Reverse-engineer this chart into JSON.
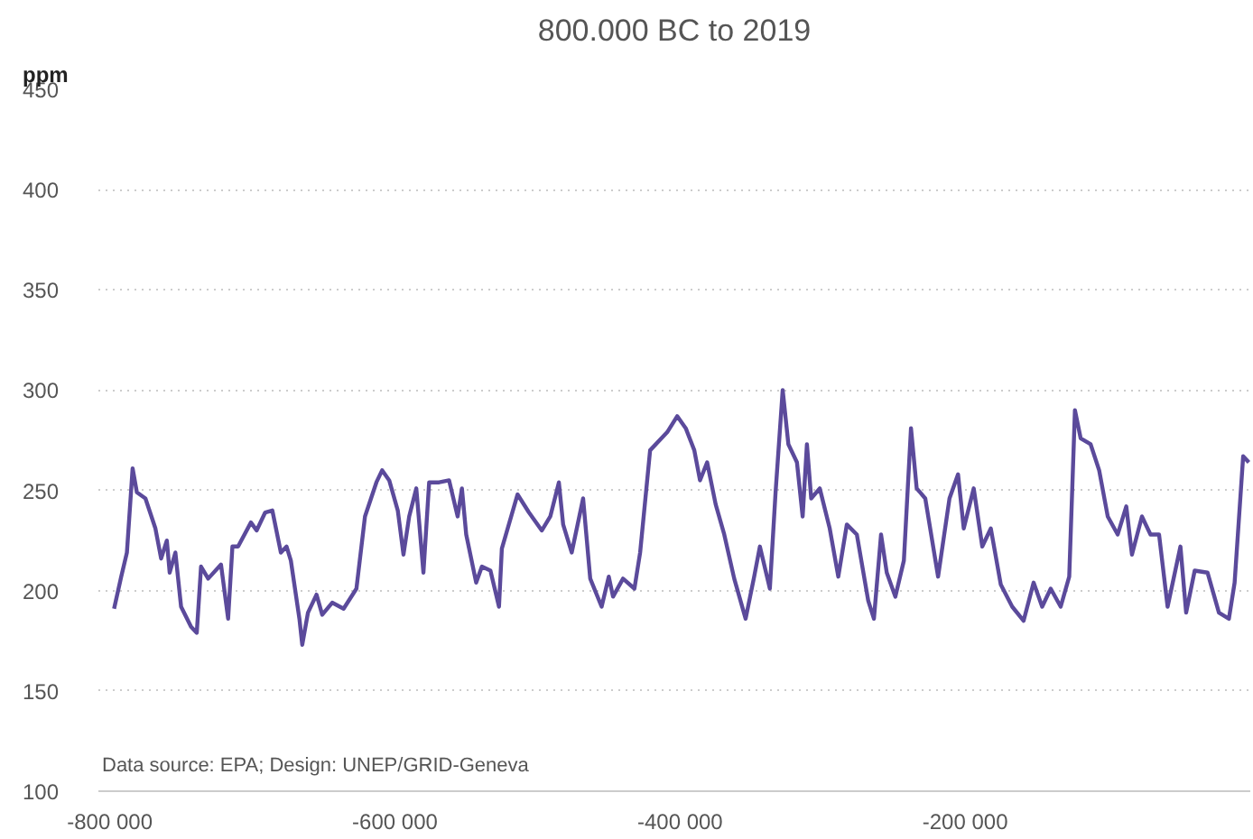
{
  "chart_data": {
    "type": "line",
    "title": "800.000 BC to 2019",
    "ylabel": "ppm",
    "annotations": [
      "Data source: EPA; Design: UNEP/GRID-Geneva"
    ],
    "xlim": [
      -808000,
      0
    ],
    "ylim": [
      100,
      450
    ],
    "xticks": [
      {
        "value": -800000,
        "label": "-800 000"
      },
      {
        "value": -600000,
        "label": "-600 000"
      },
      {
        "value": -400000,
        "label": "-400 000"
      },
      {
        "value": -200000,
        "label": "-200 000"
      }
    ],
    "yticks": [
      100,
      150,
      200,
      250,
      300,
      350,
      400,
      450
    ],
    "grid": "y",
    "series": [
      {
        "color": "#5b4a9b",
        "x": [
          -797000,
          -792000,
          -788000,
          -784000,
          -781000,
          -775000,
          -768000,
          -764000,
          -760000,
          -758000,
          -754000,
          -750000,
          -743000,
          -739000,
          -736000,
          -731000,
          -722000,
          -717000,
          -714000,
          -710000,
          -701000,
          -697000,
          -691000,
          -686000,
          -680000,
          -676000,
          -673000,
          -667000,
          -665000,
          -661000,
          -655000,
          -651000,
          -644000,
          -636000,
          -627000,
          -621000,
          -613000,
          -609000,
          -604000,
          -598000,
          -594000,
          -590000,
          -585000,
          -580000,
          -576000,
          -569000,
          -562000,
          -556000,
          -553000,
          -550000,
          -543000,
          -539000,
          -533000,
          -527000,
          -525000,
          -514000,
          -506000,
          -497000,
          -491000,
          -485000,
          -482000,
          -476000,
          -468000,
          -463000,
          -455000,
          -450000,
          -447000,
          -440000,
          -432000,
          -428000,
          -421000,
          -409000,
          -402000,
          -396000,
          -390000,
          -386000,
          -381000,
          -375000,
          -369000,
          -362000,
          -354000,
          -348000,
          -344000,
          -337000,
          -333000,
          -328000,
          -324000,
          -318000,
          -314000,
          -311000,
          -308000,
          -302000,
          -295000,
          -289000,
          -283000,
          -276000,
          -268000,
          -264000,
          -259000,
          -255000,
          -249000,
          -243000,
          -238000,
          -234000,
          -228000,
          -219000,
          -211000,
          -205000,
          -201000,
          -194000,
          -188000,
          -182000,
          -175000,
          -167000,
          -159000,
          -152000,
          -146000,
          -140000,
          -133000,
          -127000,
          -123000,
          -119000,
          -112000,
          -106000,
          -100000,
          -93000,
          -87000,
          -83000,
          -76000,
          -70000,
          -64000,
          -58000,
          -49000,
          -45000,
          -39000,
          -30000,
          -22000,
          -15000,
          -11000,
          -5000,
          -1000
        ],
        "values": [
          191,
          207,
          219,
          261,
          249,
          246,
          231,
          216,
          225,
          209,
          219,
          192,
          182,
          179,
          212,
          206,
          213,
          186,
          222,
          222,
          234,
          230,
          239,
          240,
          219,
          222,
          215,
          186,
          173,
          189,
          198,
          188,
          194,
          191,
          201,
          237,
          254,
          260,
          255,
          240,
          218,
          237,
          251,
          209,
          254,
          254,
          255,
          237,
          251,
          228,
          204,
          212,
          210,
          192,
          221,
          248,
          239,
          230,
          237,
          254,
          233,
          219,
          246,
          206,
          192,
          207,
          197,
          206,
          201,
          219,
          270,
          279,
          287,
          281,
          270,
          255,
          264,
          243,
          228,
          206,
          186,
          207,
          222,
          201,
          249,
          300,
          273,
          264,
          237,
          273,
          246,
          251,
          231,
          207,
          233,
          228,
          195,
          186,
          228,
          209,
          197,
          215,
          281,
          251,
          246,
          207,
          246,
          258,
          231,
          251,
          222,
          231,
          203,
          192,
          185,
          204,
          192,
          201,
          192,
          207,
          290,
          276,
          273,
          260,
          237,
          228,
          242,
          218,
          237,
          228,
          228,
          192,
          222,
          189,
          210,
          209,
          189,
          186,
          204,
          267,
          264
        ]
      }
    ]
  }
}
